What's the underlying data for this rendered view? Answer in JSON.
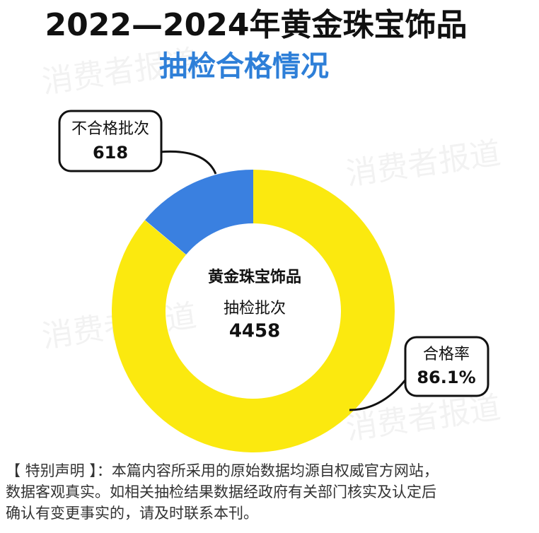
{
  "chart_data": {
    "type": "pie",
    "title": "2022—2024年黄金珠宝饰品",
    "subtitle": "抽检合格情况",
    "center": {
      "name": "黄金珠宝饰品",
      "label": "抽检批次",
      "total": 4458
    },
    "categories": [
      "不合格批次",
      "合格率"
    ],
    "values": [
      618,
      86.1
    ],
    "value_labels": [
      "618",
      "86.1%"
    ],
    "colors": [
      "#3a80e0",
      "#fbe90f"
    ],
    "watermark": "消费者报道",
    "footer": [
      "【 特别声明 】：本篇内容所采用的原始数据均源自权威官方网站，",
      "数据客观真实。如相关抽检结果数据经政府有关部门核实及认定后",
      "确认有变更事实的，请及时联系本刊。"
    ]
  }
}
